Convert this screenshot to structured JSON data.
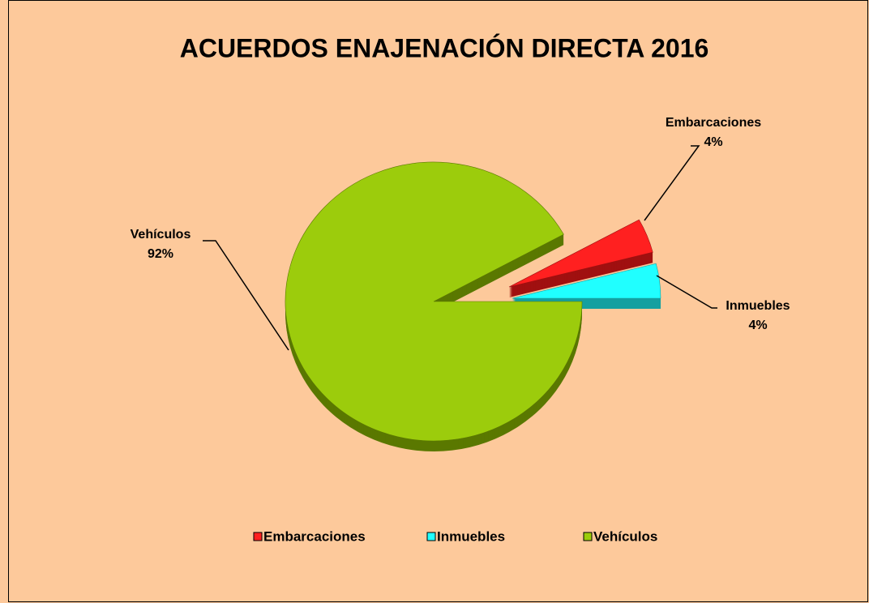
{
  "chart_data": {
    "type": "pie",
    "title": "ACUERDOS ENAJENACIÓN DIRECTA 2016",
    "categories": [
      "Embarcaciones",
      "Inmuebles",
      "Vehículos"
    ],
    "values": [
      4,
      4,
      92
    ],
    "value_labels": [
      "4%",
      "4%",
      "92%"
    ],
    "colors": [
      "#ff2020",
      "#20ffff",
      "#9ccc0c"
    ],
    "legend": "bottom"
  }
}
